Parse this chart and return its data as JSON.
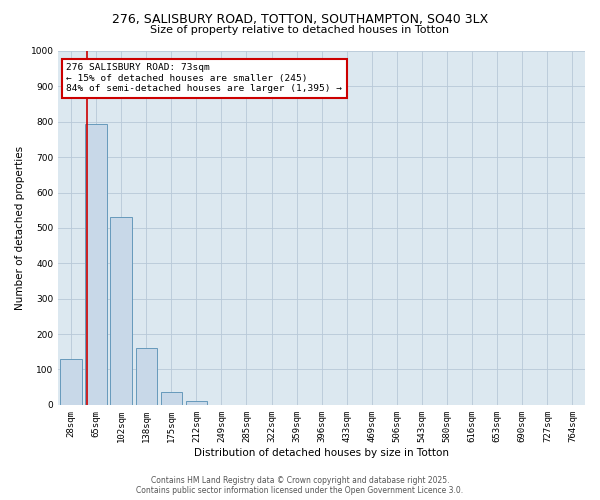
{
  "title1": "276, SALISBURY ROAD, TOTTON, SOUTHAMPTON, SO40 3LX",
  "title2": "Size of property relative to detached houses in Totton",
  "xlabel": "Distribution of detached houses by size in Totton",
  "ylabel": "Number of detached properties",
  "categories": [
    "28sqm",
    "65sqm",
    "102sqm",
    "138sqm",
    "175sqm",
    "212sqm",
    "249sqm",
    "285sqm",
    "322sqm",
    "359sqm",
    "396sqm",
    "433sqm",
    "469sqm",
    "506sqm",
    "543sqm",
    "580sqm",
    "616sqm",
    "653sqm",
    "690sqm",
    "727sqm",
    "764sqm"
  ],
  "values": [
    130,
    795,
    530,
    160,
    37,
    10,
    0,
    0,
    0,
    0,
    0,
    0,
    0,
    0,
    0,
    0,
    0,
    0,
    0,
    0,
    0
  ],
  "bar_color": "#c8d8e8",
  "bar_edge_color": "#6699bb",
  "grid_color": "#b8c8d8",
  "plot_bg_color": "#dce8f0",
  "fig_bg_color": "#ffffff",
  "vline_x": 0.62,
  "vline_color": "#cc0000",
  "vline_lw": 1.2,
  "annotation_text": "276 SALISBURY ROAD: 73sqm\n← 15% of detached houses are smaller (245)\n84% of semi-detached houses are larger (1,395) →",
  "annotation_box_color": "#cc0000",
  "annotation_bg": "white",
  "ylim": [
    0,
    1000
  ],
  "yticks": [
    0,
    100,
    200,
    300,
    400,
    500,
    600,
    700,
    800,
    900,
    1000
  ],
  "footer1": "Contains HM Land Registry data © Crown copyright and database right 2025.",
  "footer2": "Contains public sector information licensed under the Open Government Licence 3.0.",
  "title1_fontsize": 9,
  "title2_fontsize": 8,
  "axis_label_fontsize": 7.5,
  "tick_fontsize": 6.5,
  "annotation_fontsize": 6.8,
  "footer_fontsize": 5.5
}
